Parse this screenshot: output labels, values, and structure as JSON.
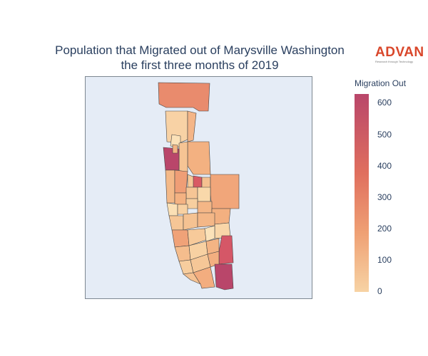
{
  "title": {
    "line1": "Population that Migrated out of Marysville Washington",
    "line2": "the first three months of 2019"
  },
  "logo": {
    "word": "ADVAN",
    "tagline": "Research through Technology",
    "color": "#d9472b"
  },
  "colorbar": {
    "title": "Migration Out",
    "ticks": [
      "600",
      "500",
      "400",
      "300",
      "200",
      "100",
      "0"
    ],
    "range": [
      0,
      630
    ],
    "colorscale": [
      "#f7d3a4",
      "#efa074",
      "#e06f5e",
      "#b9466a"
    ]
  },
  "map": {
    "background": "#e5ecf6",
    "border_color": "#7d8791"
  },
  "chart_data": {
    "type": "choropleth",
    "title": "Population that Migrated out of Marysville Washington the first three months of 2019",
    "colorbar_title": "Migration Out",
    "colorbar_range": [
      0,
      630
    ]
  }
}
